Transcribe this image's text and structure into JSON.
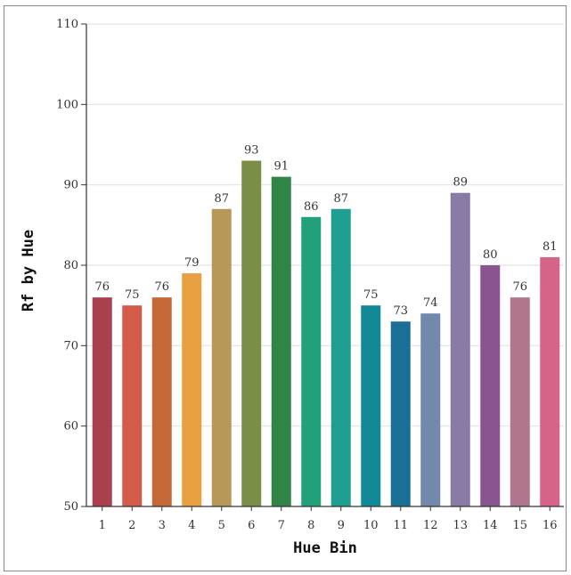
{
  "chart_data": {
    "type": "bar",
    "xlabel": "Hue Bin",
    "ylabel": "Rf by Hue",
    "ylim": [
      50,
      110
    ],
    "yticks": [
      50,
      60,
      70,
      80,
      90,
      100,
      110
    ],
    "grid": "horizontal",
    "categories": [
      "1",
      "2",
      "3",
      "4",
      "5",
      "6",
      "7",
      "8",
      "9",
      "10",
      "11",
      "12",
      "13",
      "14",
      "15",
      "16"
    ],
    "values": [
      76,
      75,
      76,
      79,
      87,
      93,
      91,
      86,
      87,
      75,
      73,
      74,
      89,
      80,
      76,
      81
    ],
    "colors": [
      "#a8404e",
      "#d45a4a",
      "#c46a38",
      "#e8a040",
      "#b89858",
      "#7a8e48",
      "#2f8446",
      "#21a07a",
      "#1f9e92",
      "#128a96",
      "#1a6f96",
      "#7289ad",
      "#8a7aa6",
      "#8a5490",
      "#b0768e",
      "#d66488"
    ]
  }
}
